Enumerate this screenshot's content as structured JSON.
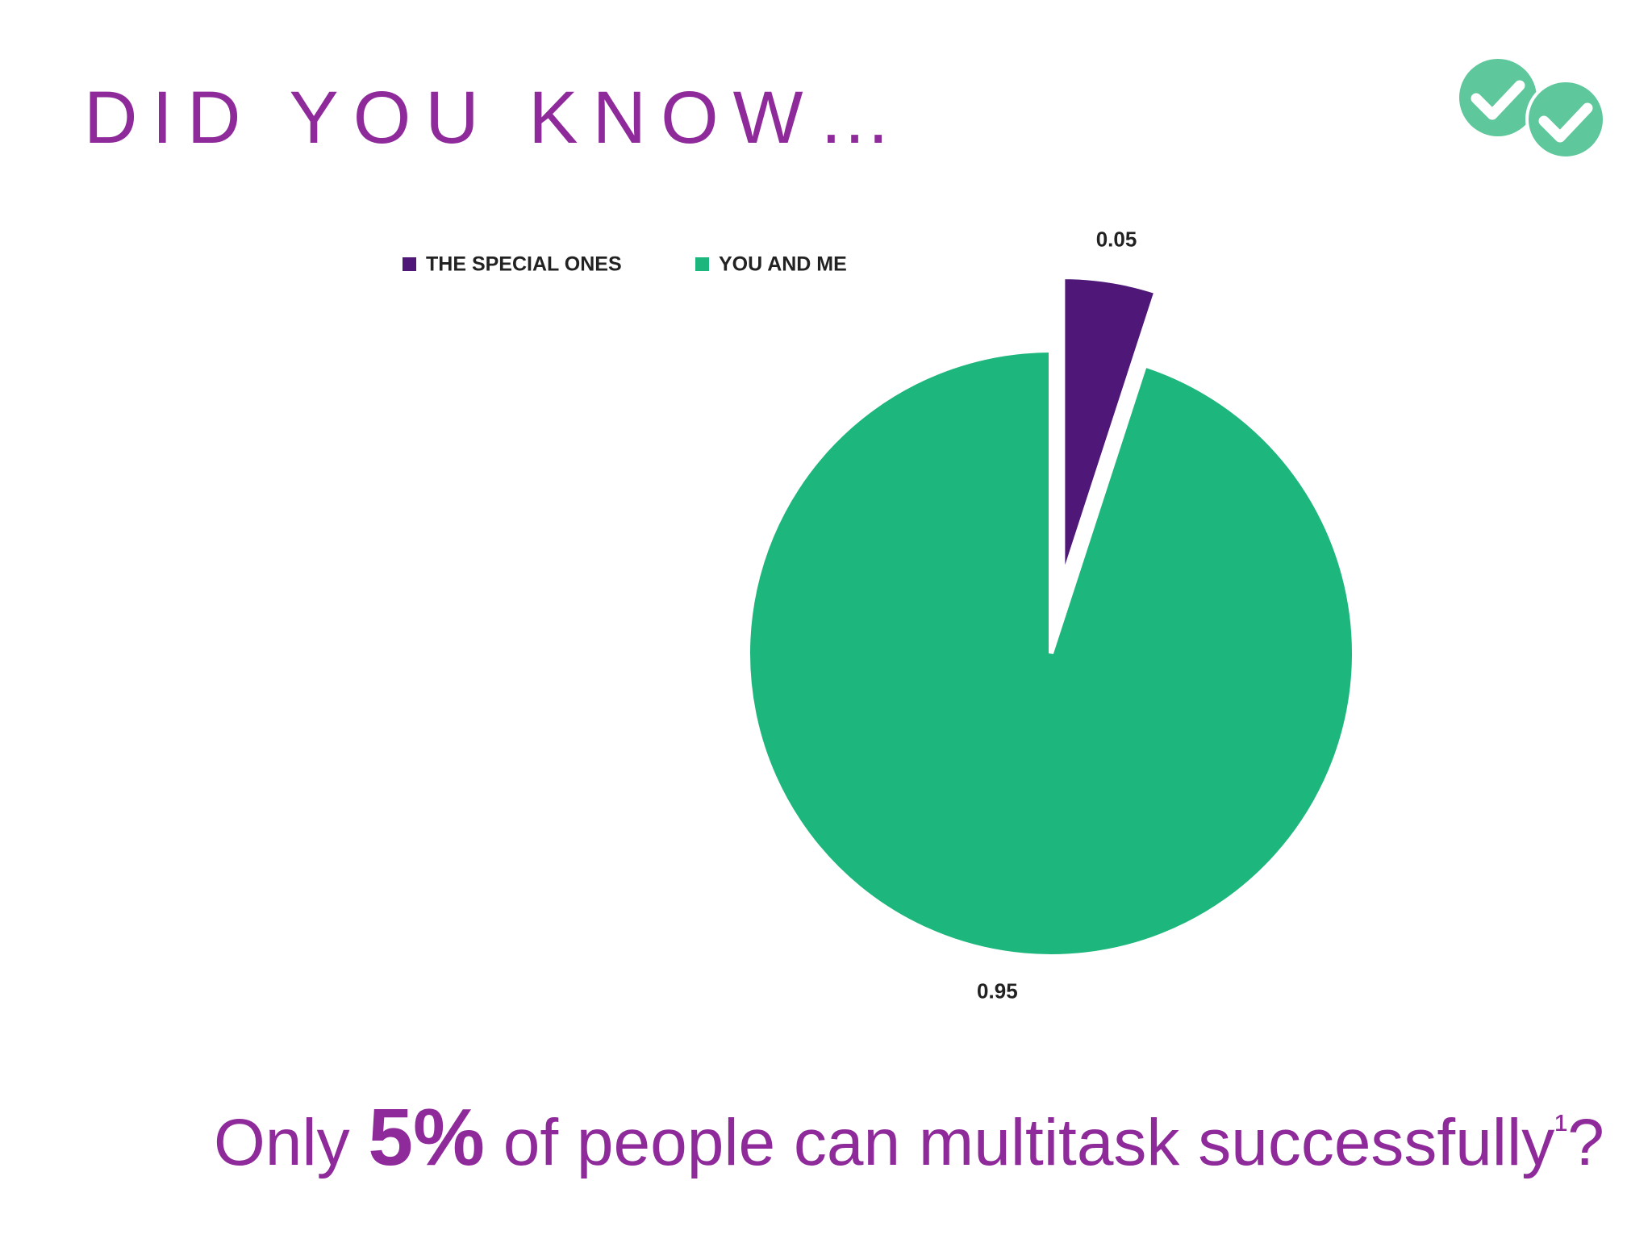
{
  "header": {
    "title": "DID YOU KNOW…"
  },
  "chart_data": {
    "type": "pie",
    "categories": [
      "THE SPECIAL ONES",
      "YOU AND ME"
    ],
    "values": [
      0.05,
      0.95
    ],
    "colors": [
      "#4f1878",
      "#1db67d"
    ],
    "legend": "top"
  },
  "footer": {
    "before": "Only",
    "highlight": "5%",
    "after": "of people can multitask successfully",
    "note": "¹",
    "end": "?"
  }
}
